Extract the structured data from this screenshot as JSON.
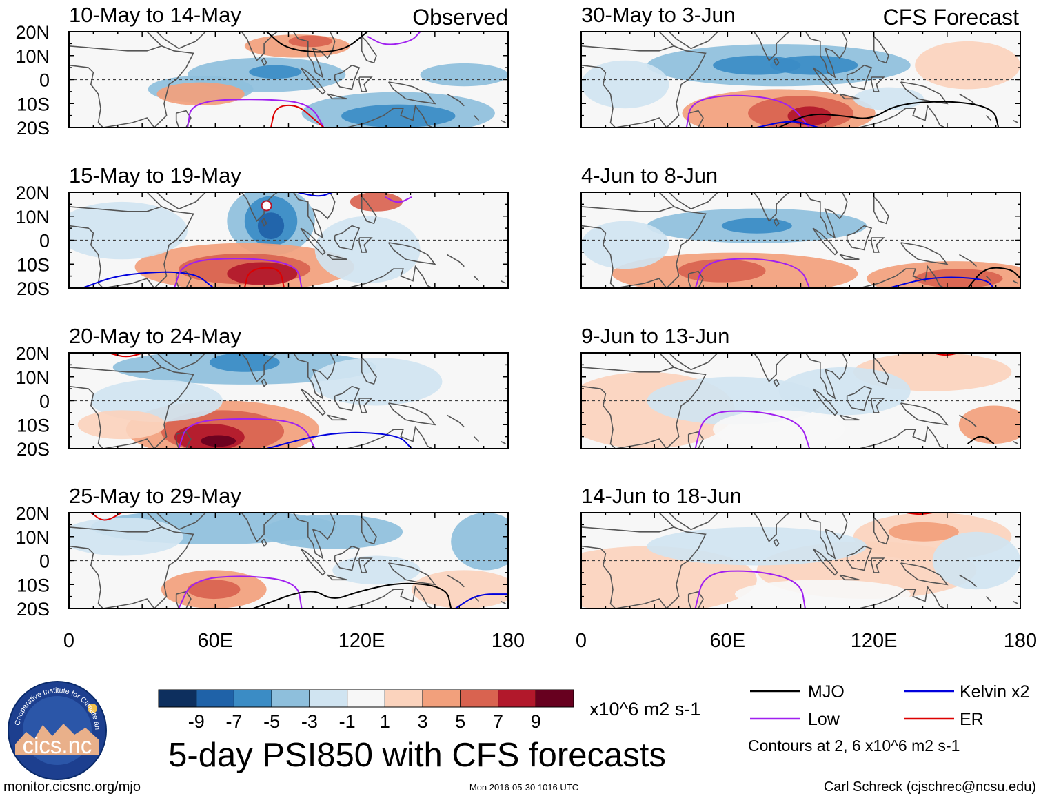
{
  "columns": {
    "left": {
      "label": "Observed"
    },
    "right": {
      "label": "CFS Forecast"
    }
  },
  "panels": [
    {
      "id": "p1",
      "title": "10-May to 14-May",
      "column": "left"
    },
    {
      "id": "p2",
      "title": "15-May to 19-May",
      "column": "left"
    },
    {
      "id": "p3",
      "title": "20-May to 24-May",
      "column": "left"
    },
    {
      "id": "p4",
      "title": "25-May to 29-May",
      "column": "left"
    },
    {
      "id": "p5",
      "title": "30-May to 3-Jun",
      "column": "right"
    },
    {
      "id": "p6",
      "title": "4-Jun to 8-Jun",
      "column": "right"
    },
    {
      "id": "p7",
      "title": "9-Jun to 13-Jun",
      "column": "right"
    },
    {
      "id": "p8",
      "title": "14-Jun to 18-Jun",
      "column": "right"
    }
  ],
  "axes": {
    "lat_ticks": [
      "20N",
      "10N",
      "0",
      "10S",
      "20S"
    ],
    "lon_ticks": [
      "0",
      "60E",
      "120E",
      "180"
    ]
  },
  "colorbar": {
    "tick_labels": [
      "-9",
      "-7",
      "-5",
      "-3",
      "-1",
      "1",
      "3",
      "5",
      "7",
      "9"
    ],
    "colors": [
      "#0d2f5e",
      "#1f62a8",
      "#3b8cc5",
      "#8ebfdc",
      "#d0e4f1",
      "#f7f7f7",
      "#fbd3bd",
      "#f2a07c",
      "#d96350",
      "#b2182b",
      "#67001f"
    ],
    "units": "x10^6 m2 s-1"
  },
  "title": "5-day PSI850 with CFS forecasts",
  "legend": {
    "items": [
      {
        "label": "MJO",
        "color": "#000000"
      },
      {
        "label": "Kelvin x2",
        "color": "#0000dd"
      },
      {
        "label": "Low",
        "color": "#a020f0"
      },
      {
        "label": "ER",
        "color": "#dd0000"
      }
    ],
    "note": "Contours at 2, 6 x10^6 m2 s-1"
  },
  "logo": {
    "text": "cics.nc",
    "ring_text": "Cooperative Institute for Climate and Satellites"
  },
  "footer": {
    "website": "monitor.cicsnc.org/mjo",
    "timestamp": "Mon 2016-05-30 1016 UTC",
    "author": "Carl Schreck (cjschrec@ncsu.edu)"
  },
  "palette": {
    "mjo": "#000000",
    "kelvin": "#0000dd",
    "low": "#a020f0",
    "er": "#dd0000",
    "coast": "#555555",
    "equator": "#444444"
  }
}
